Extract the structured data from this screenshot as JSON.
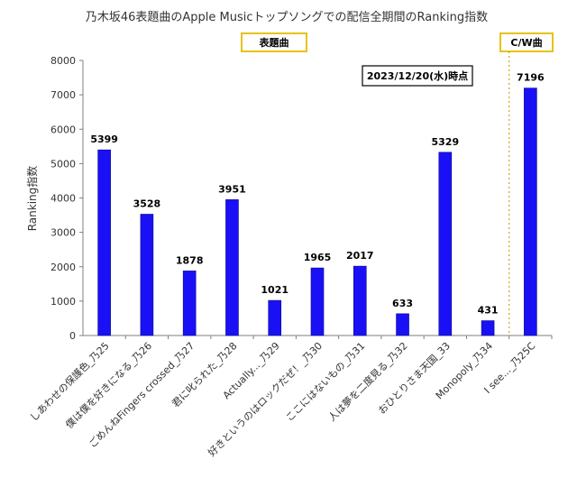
{
  "chart_data": {
    "type": "bar",
    "title": "乃木坂46表題曲のApple Musicトップソングでの配信全期間のRanking指数",
    "xlabel": "",
    "ylabel": "Ranking指数",
    "ylim": [
      0,
      8000
    ],
    "yticks": [
      0,
      1000,
      2000,
      3000,
      4000,
      5000,
      6000,
      7000,
      8000
    ],
    "grid": false,
    "bar_color": "#1a10f5",
    "categories": [
      "しあわせの保護色_乃25",
      "僕は僕を好きになる_乃26",
      "ごめんねFingers crossed_乃27",
      "君に叱られた_乃28",
      "Actually..._乃29",
      "好きというのはロックだぜ！_乃30",
      "ここにはないもの_乃31",
      "人は夢を二度見る_乃32",
      "おひとりさま天国_33",
      "Monopoly_乃34",
      "I see..._乃25C"
    ],
    "values": [
      5399,
      3528,
      1878,
      3951,
      1021,
      1965,
      2017,
      633,
      5329,
      431,
      7196
    ],
    "annotations": {
      "date_note": "2023/12/20(水)時点",
      "group_main": "表題曲",
      "group_cw": "C/W曲",
      "group_box_color": "#e6c21a",
      "divider_color": "#d4a017"
    }
  }
}
